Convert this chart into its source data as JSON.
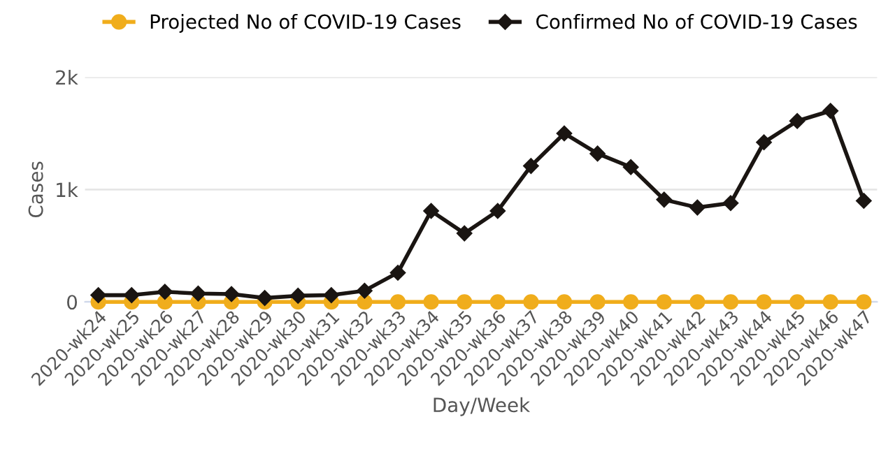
{
  "chart_data": {
    "type": "line",
    "xlabel": "Day/Week",
    "ylabel": "Cases",
    "categories": [
      "2020-wk24",
      "2020-wk25",
      "2020-wk26",
      "2020-wk27",
      "2020-wk28",
      "2020-wk29",
      "2020-wk30",
      "2020-wk31",
      "2020-wk32",
      "2020-wk33",
      "2020-wk34",
      "2020-wk35",
      "2020-wk36",
      "2020-wk37",
      "2020-wk38",
      "2020-wk39",
      "2020-wk40",
      "2020-wk41",
      "2020-wk42",
      "2020-wk43",
      "2020-wk44",
      "2020-wk45",
      "2020-wk46",
      "2020-wk47"
    ],
    "series": [
      {
        "name": "Projected No of COVID-19 Cases",
        "color": "#f0ad1c",
        "marker": "circle",
        "values": [
          0,
          0,
          0,
          0,
          0,
          0,
          0,
          0,
          0,
          0,
          0,
          0,
          0,
          0,
          0,
          0,
          0,
          0,
          0,
          0,
          0,
          0,
          0,
          0
        ]
      },
      {
        "name": "Confirmed No of COVID-19 Cases",
        "color": "#1a1512",
        "marker": "diamond",
        "values": [
          60,
          60,
          90,
          75,
          70,
          35,
          55,
          60,
          100,
          260,
          810,
          610,
          810,
          1210,
          1500,
          1320,
          1200,
          910,
          840,
          880,
          1420,
          1610,
          1700,
          900
        ]
      }
    ],
    "ylim": [
      0,
      2000
    ],
    "yticks": [
      0,
      {
        "value": 1000,
        "label": "1k"
      },
      {
        "value": 2000,
        "label": "2k"
      }
    ],
    "grid": "y",
    "legend": "top"
  }
}
